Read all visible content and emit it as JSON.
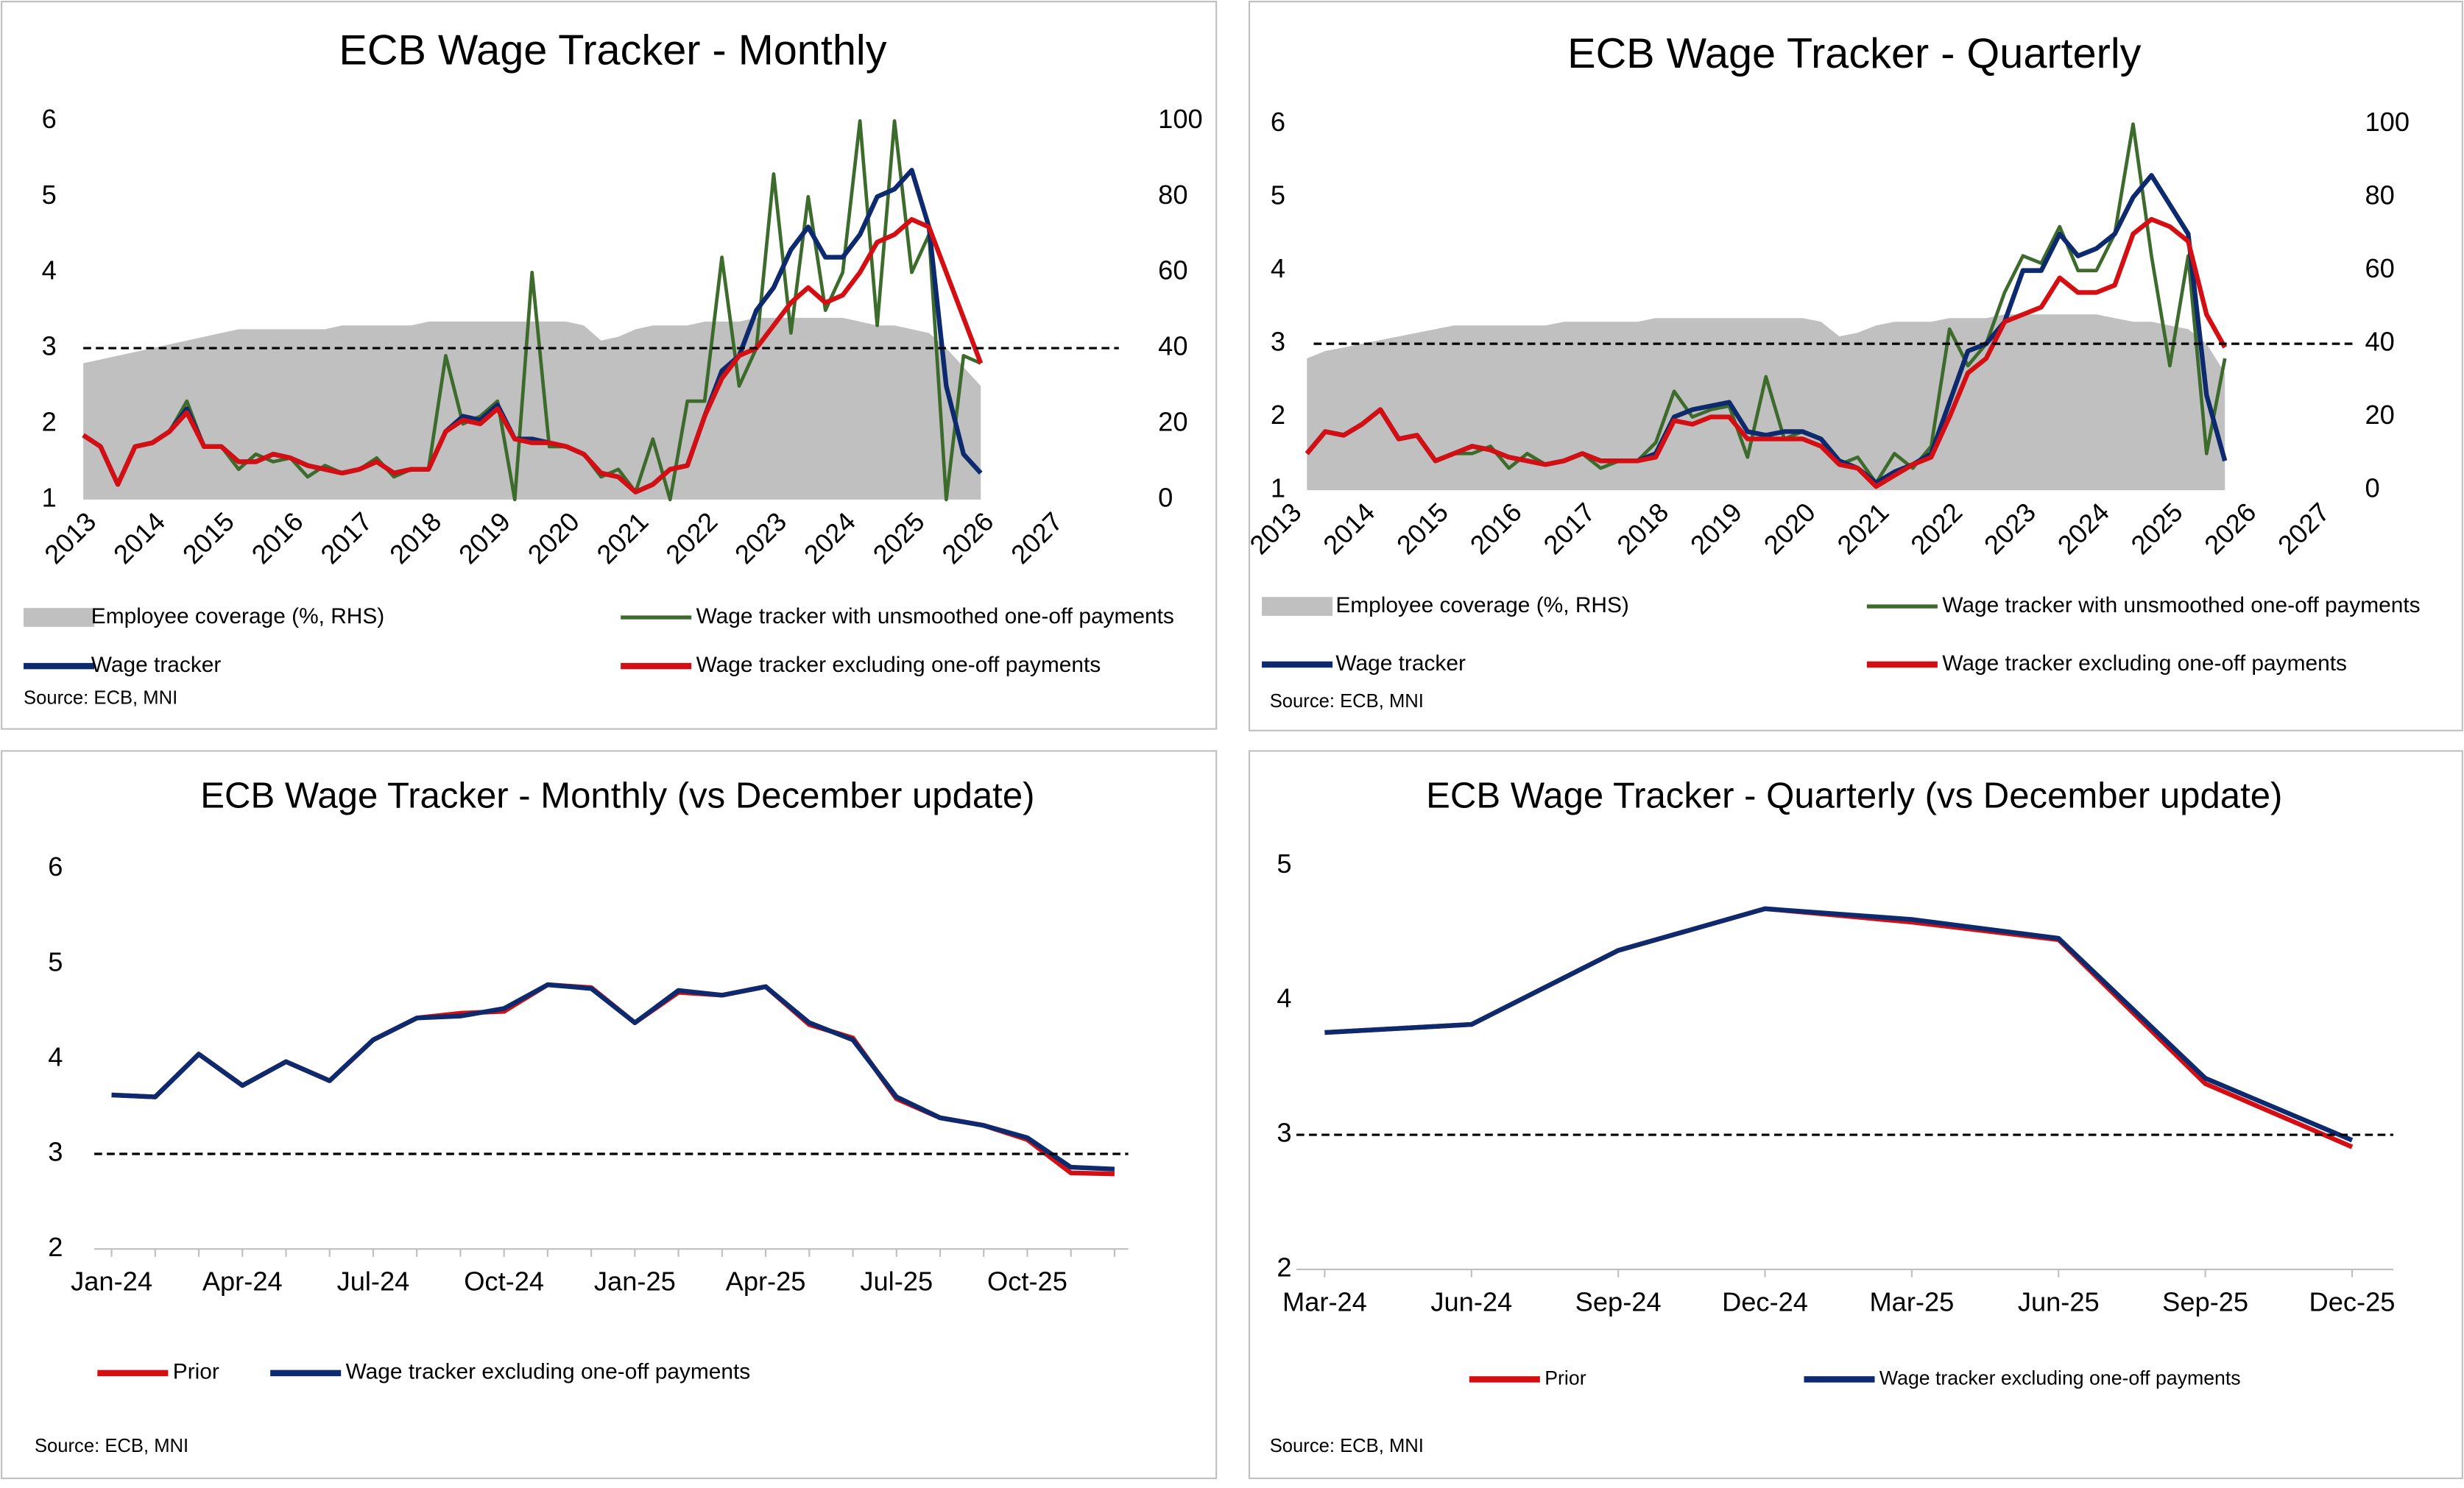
{
  "chart_data": [
    {
      "type": "line",
      "title": "ECB Wage Tracker - Monthly",
      "source": "Source: ECB, MNI",
      "x": [
        2013,
        2013.25,
        2013.5,
        2013.75,
        2014,
        2014.25,
        2014.5,
        2014.75,
        2015,
        2015.25,
        2015.5,
        2015.75,
        2016,
        2016.25,
        2016.5,
        2016.75,
        2017,
        2017.25,
        2017.5,
        2017.75,
        2018,
        2018.25,
        2018.5,
        2018.75,
        2019,
        2019.25,
        2019.5,
        2019.75,
        2020,
        2020.25,
        2020.5,
        2020.75,
        2021,
        2021.25,
        2021.5,
        2021.75,
        2022,
        2022.25,
        2022.5,
        2022.75,
        2023,
        2023.25,
        2023.5,
        2023.75,
        2024,
        2024.25,
        2024.5,
        2024.75,
        2025,
        2025.25,
        2025.5,
        2025.75,
        2026
      ],
      "xlim": [
        2013,
        2028
      ],
      "xticks": [
        2013,
        2014,
        2015,
        2016,
        2017,
        2018,
        2019,
        2020,
        2021,
        2022,
        2023,
        2024,
        2025,
        2026,
        2027
      ],
      "ylim": [
        1,
        6
      ],
      "yticks": [
        1,
        2,
        3,
        4,
        5,
        6
      ],
      "y2lim": [
        0,
        100
      ],
      "y2ticks": [
        0,
        20,
        40,
        60,
        80,
        100
      ],
      "hline": 3,
      "series": [
        {
          "name": "Employee coverage (%, RHS)",
          "color": "#c0c0c0",
          "style": "area",
          "axis": "y2",
          "values": [
            36,
            37,
            38,
            39,
            40,
            41,
            42,
            43,
            44,
            45,
            45,
            45,
            45,
            45,
            45,
            46,
            46,
            46,
            46,
            46,
            47,
            47,
            47,
            47,
            47,
            47,
            47,
            47,
            47,
            46,
            42,
            43,
            45,
            46,
            46,
            46,
            47,
            47,
            47,
            48,
            48,
            48,
            48,
            48,
            48,
            47,
            46,
            46,
            45,
            44,
            40,
            35,
            30
          ]
        },
        {
          "name": "Wage tracker with unsmoothed one-off payments",
          "color": "#3d6b2c",
          "values": [
            1.85,
            1.7,
            1.2,
            1.7,
            1.75,
            1.9,
            2.3,
            1.7,
            1.7,
            1.4,
            1.6,
            1.5,
            1.55,
            1.3,
            1.45,
            1.35,
            1.4,
            1.55,
            1.3,
            1.4,
            1.4,
            2.9,
            2.0,
            2.1,
            2.3,
            1.0,
            4.0,
            1.7,
            1.7,
            1.6,
            1.3,
            1.4,
            1.1,
            1.8,
            1.0,
            2.3,
            2.3,
            4.2,
            2.5,
            3.0,
            5.3,
            3.2,
            5.0,
            3.5,
            4.0,
            6.0,
            3.3,
            6.0,
            4.0,
            4.5,
            1.0,
            2.9,
            2.8
          ]
        },
        {
          "name": "Wage tracker",
          "color": "#0d2a6e",
          "values": [
            1.85,
            1.7,
            1.2,
            1.7,
            1.75,
            1.9,
            2.2,
            1.7,
            1.7,
            1.5,
            1.5,
            1.6,
            1.55,
            1.45,
            1.4,
            1.35,
            1.4,
            1.5,
            1.35,
            1.4,
            1.4,
            1.9,
            2.1,
            2.05,
            2.25,
            1.8,
            1.8,
            1.75,
            1.7,
            1.6,
            1.35,
            1.3,
            1.1,
            1.2,
            1.4,
            1.45,
            2.1,
            2.7,
            2.9,
            3.5,
            3.8,
            4.3,
            4.6,
            4.2,
            4.2,
            4.5,
            5.0,
            5.1,
            5.35,
            4.6,
            2.5,
            1.6,
            1.35
          ]
        },
        {
          "name": "Wage tracker excluding one-off payments",
          "color": "#d40f14",
          "values": [
            1.85,
            1.7,
            1.2,
            1.7,
            1.75,
            1.9,
            2.15,
            1.7,
            1.7,
            1.5,
            1.5,
            1.6,
            1.55,
            1.45,
            1.4,
            1.35,
            1.4,
            1.5,
            1.35,
            1.4,
            1.4,
            1.9,
            2.05,
            2.0,
            2.2,
            1.8,
            1.75,
            1.75,
            1.7,
            1.6,
            1.35,
            1.3,
            1.1,
            1.2,
            1.4,
            1.45,
            2.1,
            2.6,
            2.9,
            3.0,
            3.3,
            3.6,
            3.8,
            3.6,
            3.7,
            4.0,
            4.4,
            4.5,
            4.7,
            4.6,
            4.0,
            3.4,
            2.8
          ]
        }
      ]
    },
    {
      "type": "line",
      "title": "ECB Wage Tracker - Quarterly",
      "source": "Source: ECB, MNI",
      "x": [
        2013.25,
        2013.5,
        2013.75,
        2014,
        2014.25,
        2014.5,
        2014.75,
        2015,
        2015.25,
        2015.5,
        2015.75,
        2016,
        2016.25,
        2016.5,
        2016.75,
        2017,
        2017.25,
        2017.5,
        2017.75,
        2018,
        2018.25,
        2018.5,
        2018.75,
        2019,
        2019.25,
        2019.5,
        2019.75,
        2020,
        2020.25,
        2020.5,
        2020.75,
        2021,
        2021.25,
        2021.5,
        2021.75,
        2022,
        2022.25,
        2022.5,
        2022.75,
        2023,
        2023.25,
        2023.5,
        2023.75,
        2024,
        2024.25,
        2024.5,
        2024.75,
        2025,
        2025.25,
        2025.5,
        2025.75
      ],
      "xlim": [
        2013,
        2028
      ],
      "xticks": [
        2013,
        2014,
        2015,
        2016,
        2017,
        2018,
        2019,
        2020,
        2021,
        2022,
        2023,
        2024,
        2025,
        2026,
        2027
      ],
      "ylim": [
        1,
        6
      ],
      "yticks": [
        1,
        2,
        3,
        4,
        5,
        6
      ],
      "y2lim": [
        0,
        100
      ],
      "y2ticks": [
        0,
        20,
        40,
        60,
        80,
        100
      ],
      "hline": 3,
      "series": [
        {
          "name": "Employee coverage (%, RHS)",
          "color": "#c0c0c0",
          "style": "area",
          "axis": "y2",
          "values": [
            36,
            38,
            39,
            40,
            41,
            42,
            43,
            44,
            45,
            45,
            45,
            45,
            45,
            45,
            46,
            46,
            46,
            46,
            46,
            47,
            47,
            47,
            47,
            47,
            47,
            47,
            47,
            47,
            46,
            42,
            43,
            45,
            46,
            46,
            46,
            47,
            47,
            47,
            48,
            48,
            48,
            48,
            48,
            48,
            47,
            46,
            46,
            45,
            44,
            40,
            32
          ]
        },
        {
          "name": "Wage tracker with unsmoothed one-off payments",
          "color": "#3d6b2c",
          "values": [
            1.5,
            1.8,
            1.75,
            1.9,
            2.1,
            1.7,
            1.75,
            1.4,
            1.5,
            1.5,
            1.6,
            1.3,
            1.5,
            1.35,
            1.4,
            1.5,
            1.3,
            1.4,
            1.4,
            1.65,
            2.35,
            2.0,
            2.1,
            2.15,
            1.45,
            2.55,
            1.7,
            1.8,
            1.7,
            1.35,
            1.45,
            1.1,
            1.5,
            1.3,
            1.6,
            3.2,
            2.7,
            3.0,
            3.7,
            4.2,
            4.1,
            4.6,
            4.0,
            4.0,
            4.5,
            6.0,
            4.2,
            2.7,
            4.2,
            1.5,
            2.8
          ]
        },
        {
          "name": "Wage tracker",
          "color": "#0d2a6e",
          "values": [
            1.5,
            1.8,
            1.75,
            1.9,
            2.1,
            1.7,
            1.75,
            1.4,
            1.5,
            1.6,
            1.55,
            1.45,
            1.4,
            1.35,
            1.4,
            1.5,
            1.4,
            1.4,
            1.4,
            1.5,
            2.0,
            2.1,
            2.15,
            2.2,
            1.8,
            1.75,
            1.8,
            1.8,
            1.7,
            1.4,
            1.3,
            1.1,
            1.25,
            1.35,
            1.5,
            2.2,
            2.9,
            3.0,
            3.3,
            4.0,
            4.0,
            4.5,
            4.2,
            4.3,
            4.5,
            5.0,
            5.3,
            4.9,
            4.5,
            2.3,
            1.4
          ]
        },
        {
          "name": "Wage tracker excluding one-off payments",
          "color": "#d40f14",
          "values": [
            1.5,
            1.8,
            1.75,
            1.9,
            2.1,
            1.7,
            1.75,
            1.4,
            1.5,
            1.6,
            1.55,
            1.45,
            1.4,
            1.35,
            1.4,
            1.5,
            1.4,
            1.4,
            1.4,
            1.45,
            1.95,
            1.9,
            2.0,
            2.0,
            1.7,
            1.7,
            1.7,
            1.7,
            1.6,
            1.35,
            1.3,
            1.05,
            1.2,
            1.35,
            1.45,
            2.0,
            2.6,
            2.8,
            3.3,
            3.4,
            3.5,
            3.9,
            3.7,
            3.7,
            3.8,
            4.5,
            4.7,
            4.6,
            4.4,
            3.4,
            2.95
          ]
        }
      ]
    },
    {
      "type": "line",
      "title": "ECB Wage Tracker - Monthly (vs December update)",
      "source": "Source: ECB, MNI",
      "categories": [
        "Jan-24",
        null,
        null,
        "Apr-24",
        null,
        null,
        "Jul-24",
        null,
        null,
        "Oct-24",
        null,
        null,
        "Jan-25",
        null,
        null,
        "Apr-25",
        null,
        null,
        "Jul-25",
        null,
        null,
        "Oct-25",
        null,
        null
      ],
      "ylim": [
        2,
        6
      ],
      "yticks": [
        2,
        3,
        4,
        5,
        6
      ],
      "hline": 3,
      "series": [
        {
          "name": "Prior",
          "color": "#d40f14",
          "values": [
            3.62,
            3.6,
            4.05,
            3.72,
            3.97,
            3.77,
            4.2,
            4.43,
            4.48,
            4.5,
            4.78,
            4.75,
            4.38,
            4.7,
            4.67,
            4.76,
            4.36,
            4.22,
            3.58,
            3.38,
            3.3,
            3.15,
            2.8,
            2.79
          ]
        },
        {
          "name": "Wage tracker excluding one-off payments",
          "color": "#0d2a6e",
          "values": [
            3.62,
            3.6,
            4.05,
            3.72,
            3.97,
            3.77,
            4.2,
            4.43,
            4.45,
            4.53,
            4.78,
            4.74,
            4.38,
            4.72,
            4.67,
            4.76,
            4.38,
            4.2,
            3.6,
            3.38,
            3.3,
            3.17,
            2.86,
            2.84
          ]
        }
      ]
    },
    {
      "type": "line",
      "title": "ECB Wage Tracker - Quarterly (vs December update)",
      "source": "Source: ECB, MNI",
      "categories": [
        "Mar-24",
        "Jun-24",
        "Sep-24",
        "Dec-24",
        "Mar-25",
        "Jun-25",
        "Sep-25",
        "Dec-25"
      ],
      "ylim": [
        2,
        5
      ],
      "yticks": [
        2,
        3,
        4,
        5
      ],
      "hline": 3,
      "series": [
        {
          "name": "Prior",
          "color": "#d40f14",
          "values": [
            3.76,
            3.82,
            4.37,
            4.68,
            4.58,
            4.45,
            3.38,
            2.91
          ]
        },
        {
          "name": "Wage tracker excluding one-off payments",
          "color": "#0d2a6e",
          "values": [
            3.76,
            3.82,
            4.37,
            4.68,
            4.6,
            4.46,
            3.42,
            2.96
          ]
        }
      ]
    }
  ]
}
